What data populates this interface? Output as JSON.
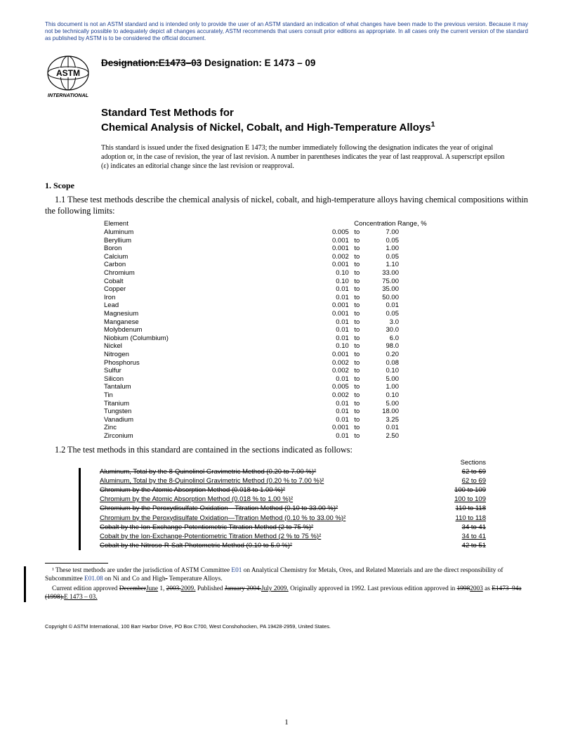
{
  "disclaimer": "This document is not an ASTM standard and is intended only to provide the user of an ASTM standard an indication of what changes have been made to the previous version. Because it may not be technically possible to adequately depict all changes accurately, ASTM recommends that users consult prior editions as appropriate. In all cases only the current version of the standard as published by ASTM is to be considered the official document.",
  "designation": {
    "old": "Designation:E1473–03",
    "new": "Designation: E 1473 – 09"
  },
  "title": {
    "line1": "Standard Test Methods for",
    "line2": "Chemical Analysis of Nickel, Cobalt, and High-Temperature Alloys"
  },
  "issued_note": "This standard is issued under the fixed designation E 1473; the number immediately following the designation indicates the year of original adoption or, in the case of revision, the year of last revision. A number in parentheses indicates the year of last reapproval. A superscript epsilon (ε) indicates an editorial change since the last revision or reapproval.",
  "scope_head": "1. Scope",
  "scope_1_1": "1.1 These test methods describe the chemical analysis of nickel, cobalt, and high-temperature alloys having chemical compositions within the following limits:",
  "scope_1_2": "1.2 The test methods in this standard are contained in the sections indicated as follows:",
  "elements_header": {
    "element": "Element",
    "range": "Concentration Range, %"
  },
  "elements": [
    {
      "name": "Aluminum",
      "lo": "0.005",
      "hi": "7.00"
    },
    {
      "name": "Beryllium",
      "lo": "0.001",
      "hi": "0.05"
    },
    {
      "name": "Boron",
      "lo": "0.001",
      "hi": "1.00"
    },
    {
      "name": "Calcium",
      "lo": "0.002",
      "hi": "0.05"
    },
    {
      "name": "Carbon",
      "lo": "0.001",
      "hi": "1.10"
    },
    {
      "name": "Chromium",
      "lo": "0.10",
      "hi": "33.00"
    },
    {
      "name": "Cobalt",
      "lo": "0.10",
      "hi": "75.00"
    },
    {
      "name": "Copper",
      "lo": "0.01",
      "hi": "35.00"
    },
    {
      "name": "Iron",
      "lo": "0.01",
      "hi": "50.00"
    },
    {
      "name": "Lead",
      "lo": "0.001",
      "hi": "0.01"
    },
    {
      "name": "Magnesium",
      "lo": "0.001",
      "hi": "0.05"
    },
    {
      "name": "Manganese",
      "lo": "0.01",
      "hi": "3.0"
    },
    {
      "name": "Molybdenum",
      "lo": "0.01",
      "hi": "30.0"
    },
    {
      "name": "Niobium (Columbium)",
      "lo": "0.01",
      "hi": "6.0"
    },
    {
      "name": "Nickel",
      "lo": "0.10",
      "hi": "98.0"
    },
    {
      "name": "Nitrogen",
      "lo": "0.001",
      "hi": "0.20"
    },
    {
      "name": "Phosphorus",
      "lo": "0.002",
      "hi": "0.08"
    },
    {
      "name": "Sulfur",
      "lo": "0.002",
      "hi": "0.10"
    },
    {
      "name": "Silicon",
      "lo": "0.01",
      "hi": "5.00"
    },
    {
      "name": "Tantalum",
      "lo": "0.005",
      "hi": "1.00"
    },
    {
      "name": "Tin",
      "lo": "0.002",
      "hi": "0.10"
    },
    {
      "name": "Titanium",
      "lo": "0.01",
      "hi": "5.00"
    },
    {
      "name": "Tungsten",
      "lo": "0.01",
      "hi": "18.00"
    },
    {
      "name": "Vanadium",
      "lo": "0.01",
      "hi": "3.25"
    },
    {
      "name": "Zinc",
      "lo": "0.001",
      "hi": "0.01"
    },
    {
      "name": "Zirconium",
      "lo": "0.01",
      "hi": "2.50"
    }
  ],
  "methods_header": "Sections",
  "methods": [
    {
      "struck": true,
      "under": false,
      "name": "Aluminum, Total by the 8-Quinolinol Gravimetric Method (0.20 to 7.00 %)²",
      "sections": "62 to 69"
    },
    {
      "struck": false,
      "under": true,
      "name": "Aluminum, Total by the 8-Quinolinol Gravimetric Method (0.20 % to 7.00 %)²",
      "sections": "62 to 69"
    },
    {
      "struck": true,
      "under": false,
      "name": "Chromium by the Atomic Absorption Method (0.018  to 1.00 %)²",
      "sections": "100 to 109"
    },
    {
      "struck": false,
      "under": true,
      "name": "Chromium by the Atomic Absorption Method (0.018 % to 1.00 %)²",
      "sections": "100 to 109"
    },
    {
      "struck": true,
      "under": false,
      "name": "Chromium by the Peroxydisulfate Oxidation—Titration Method (0.10 to 33.00 %)²",
      "sections": "110 to 118"
    },
    {
      "struck": false,
      "under": true,
      "name": "Chromium by the Peroxydisulfate Oxidation—Titration Method (0.10 % to 33.00 %)²",
      "sections": "110 to 118"
    },
    {
      "struck": true,
      "under": false,
      "name": "Cobalt by the Ion-Exchange-Potentiometric Titration Method (2 to 75 %)²",
      "sections": "34 to 41"
    },
    {
      "struck": false,
      "under": true,
      "name": "Cobalt by the Ion-Exchange-Potentiometric Titration Method (2 % to 75 %)²",
      "sections": "34 to 41"
    },
    {
      "struck": true,
      "under": false,
      "name": "Cobalt by the Nitroso-R-Salt Photometric Method (0.10 to 5.0 %)²",
      "sections": "42 to 51"
    }
  ],
  "footnotes": {
    "f1_a": "¹ These test methods are under the jurisdiction of ASTM Committee ",
    "f1_link1": "E01",
    "f1_b": " on Analytical Chemistry for Metals, Ores, and Related Materials and are the direct responsibility of Subcommittee ",
    "f1_link2": "E01.08",
    "f1_c": " on Ni and Co and High",
    "f1_strike_dash": "-",
    "f1_d": " Temperature Alloys.",
    "f2_a": "Current edition approved ",
    "f2_strike_month": "December",
    "f2_ins_month": "June",
    "f2_b": " 1, ",
    "f2_strike_y1": "2003.",
    "f2_ins_y1": "2009.",
    "f2_c": " Published ",
    "f2_strike_pub": "January 2004.",
    "f2_ins_pub": "July 2009.",
    "f2_d": " Originally approved in 1992. Last previous edition approved in ",
    "f2_strike_y2": "1998",
    "f2_ins_y2": "2003",
    "f2_e": " as ",
    "f2_strike_as": "E1473–94a (1998).",
    "f2_ins_as": "E 1473 – 03."
  },
  "copyright": "Copyright © ASTM International, 100 Barr Harbor Drive, PO Box C700, West Conshohocken, PA 19428-2959, United States.",
  "pagenum": "1"
}
